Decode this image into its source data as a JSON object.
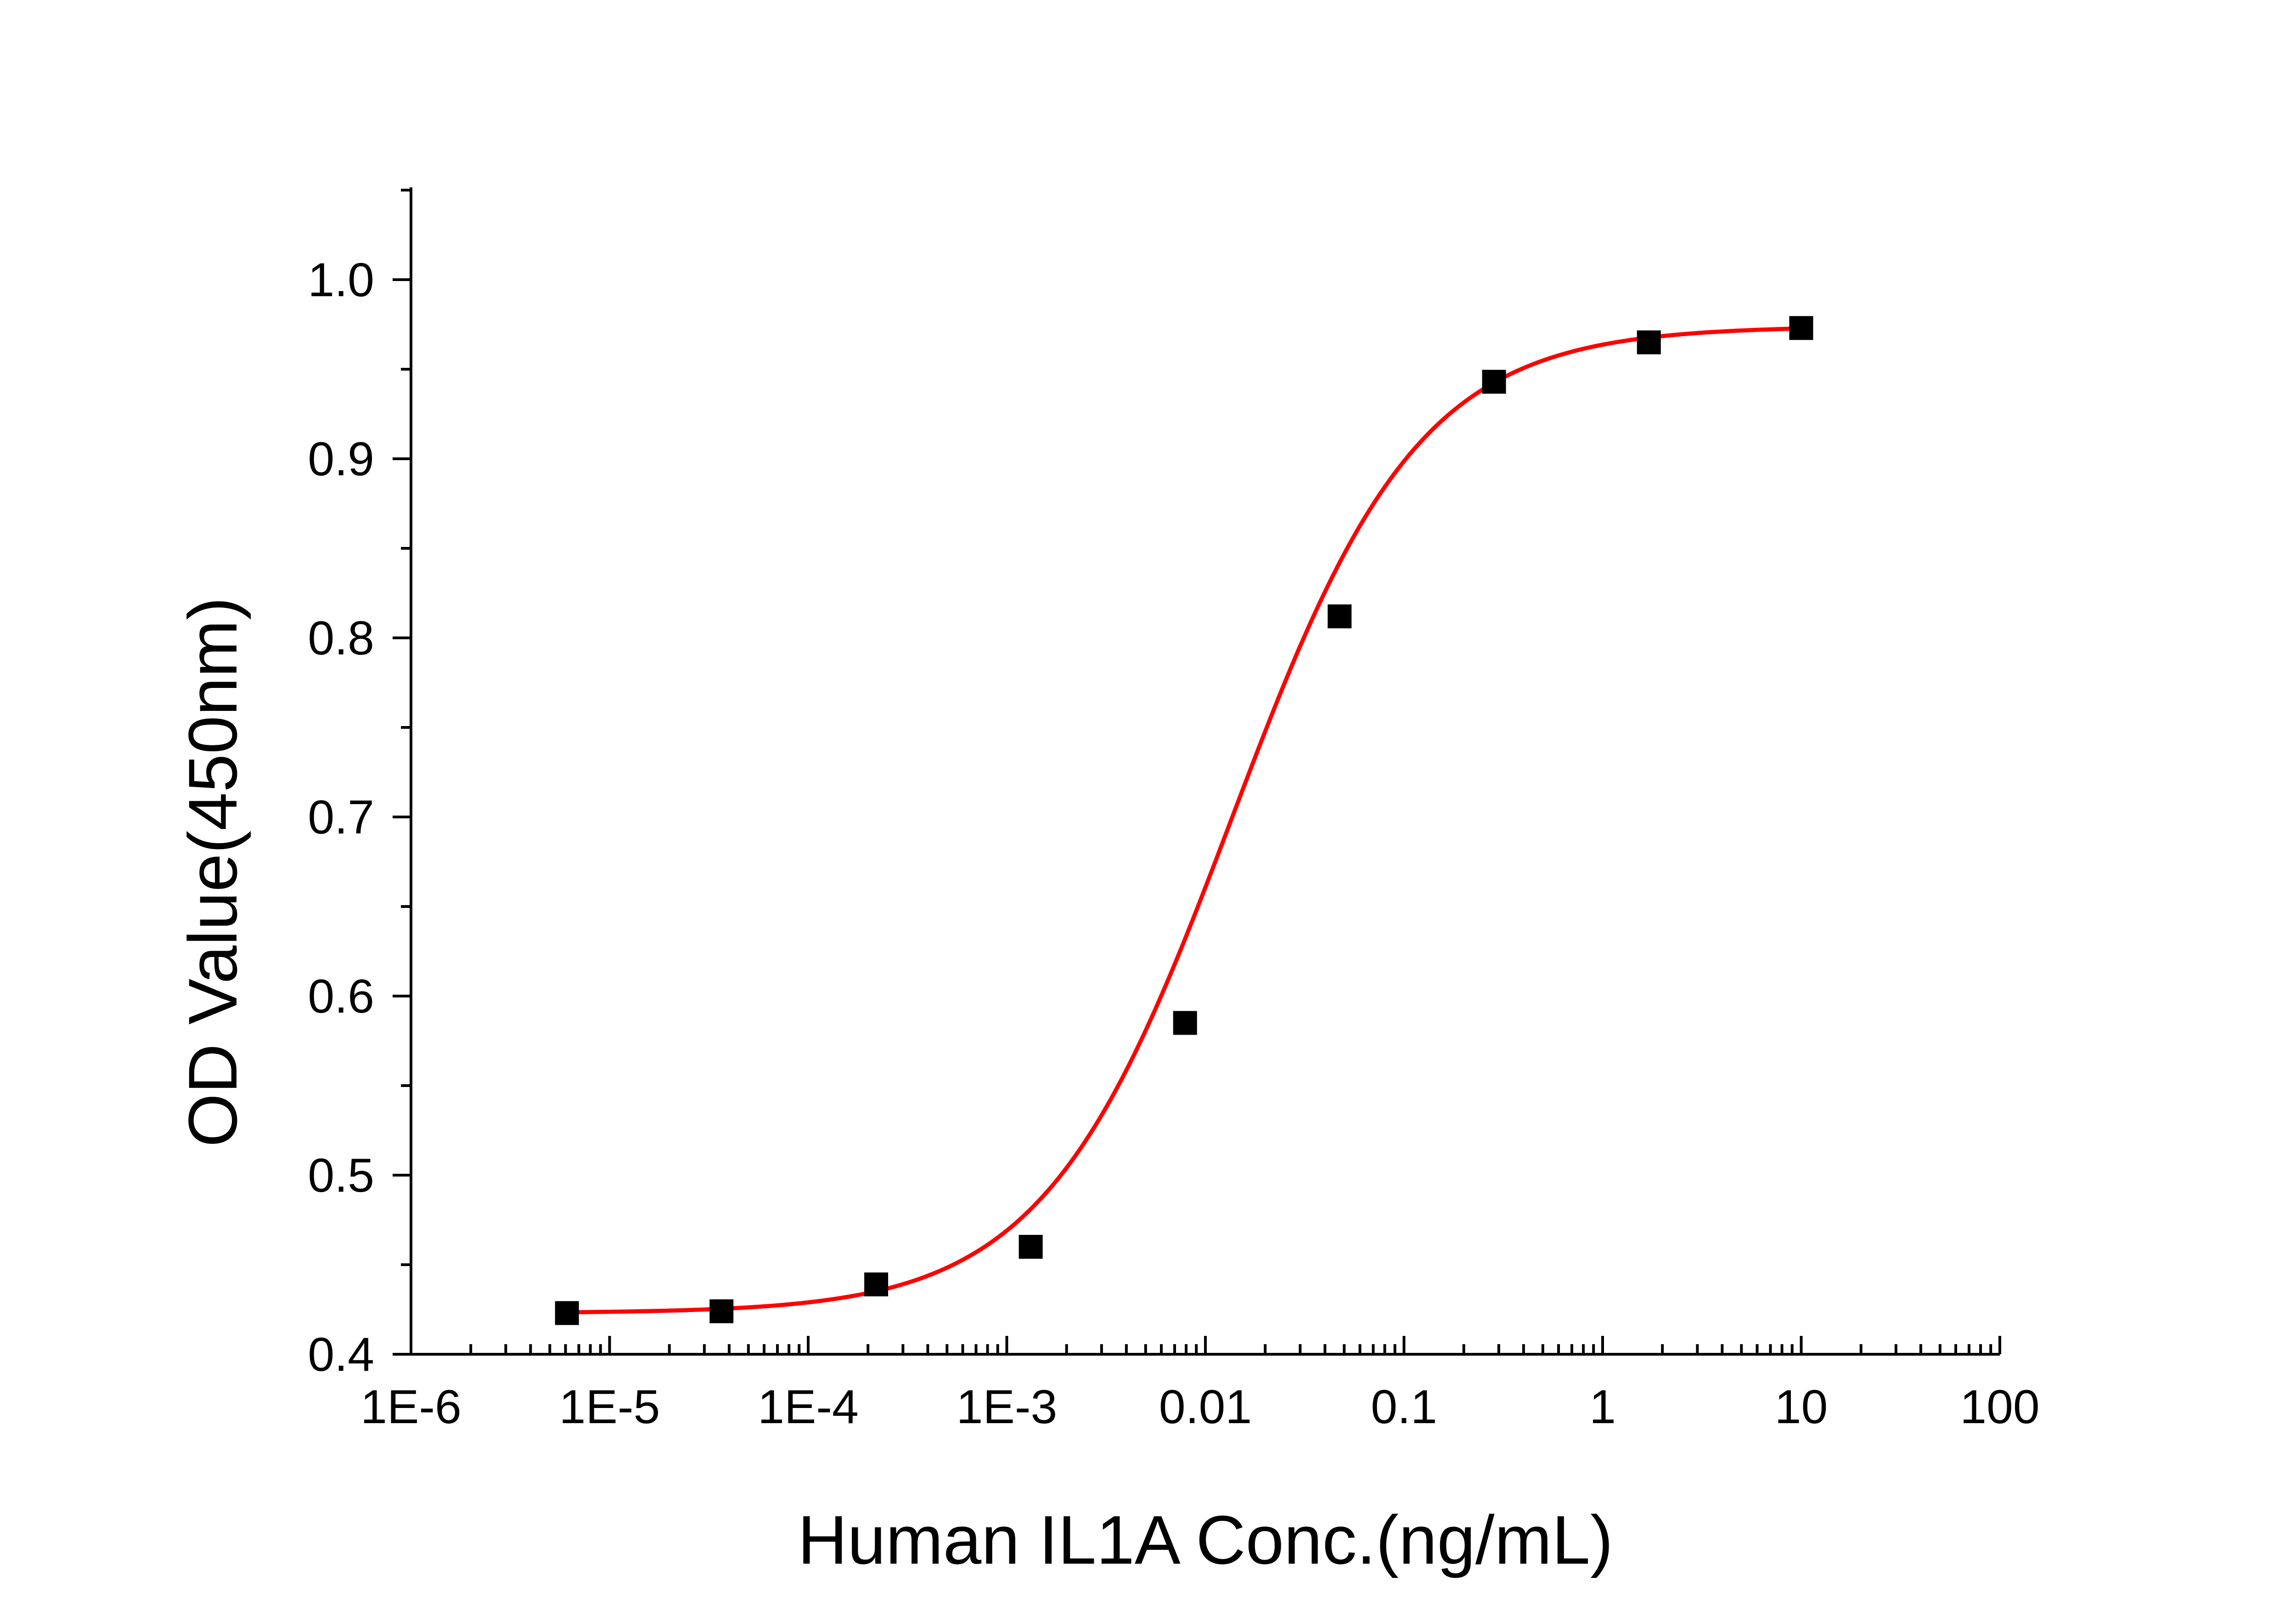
{
  "chart_data": {
    "type": "scatter",
    "title": "",
    "xlabel": "Human IL1A Conc.(ng/mL)",
    "ylabel": "OD Value(450nm)",
    "x_scale": "log",
    "xlim": [
      1e-06,
      100
    ],
    "ylim": [
      0.4,
      1.05
    ],
    "x_ticks": [
      1e-06,
      1e-05,
      0.0001,
      0.001,
      0.01,
      0.1,
      1,
      10,
      100
    ],
    "x_tick_labels": [
      "1E-6",
      "1E-5",
      "1E-4",
      "1E-3",
      "0.01",
      "0.1",
      "1",
      "10",
      "100"
    ],
    "y_ticks": [
      0.4,
      0.5,
      0.6,
      0.7,
      0.8,
      0.9,
      1.0
    ],
    "y_tick_labels": [
      "0.4",
      "0.5",
      "0.6",
      "0.7",
      "0.8",
      "0.9",
      "1.0"
    ],
    "grid": false,
    "legend": "none",
    "series": [
      {
        "kind": "points",
        "marker": "square",
        "color": "#000000",
        "x": [
          6.1e-06,
          3.66e-05,
          0.00022,
          0.00132,
          0.0079,
          0.0474,
          0.284,
          1.71,
          10
        ],
        "y": [
          0.423,
          0.424,
          0.439,
          0.46,
          0.585,
          0.812,
          0.943,
          0.965,
          0.973
        ]
      },
      {
        "kind": "fit",
        "color": "#ff0000",
        "model": "4PL",
        "bottom": 0.423,
        "top": 0.974,
        "ec50": 0.0135,
        "hill": 0.92,
        "x_range": [
          6.1e-06,
          10
        ]
      }
    ]
  }
}
